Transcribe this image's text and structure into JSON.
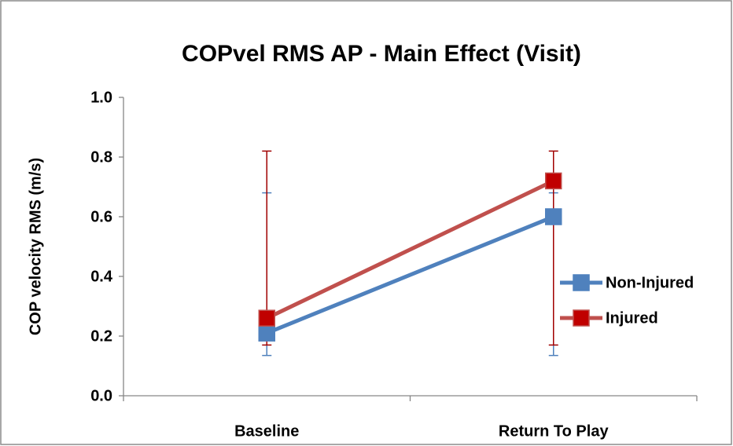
{
  "chart_data": {
    "type": "line",
    "title": "COPvel RMS AP - Main Effect (Visit)",
    "y_label": "COP velocity RMS (m/s)",
    "categories": [
      "Baseline",
      "Return To Play"
    ],
    "series": [
      {
        "name": "Non-Injured",
        "color": "#4f81bd",
        "marker_color": "#4f81bd",
        "values": [
          0.21,
          0.6
        ],
        "error_low": [
          0.135,
          0.135
        ],
        "error_high": [
          0.68,
          0.68
        ]
      },
      {
        "name": "Injured",
        "color": "#c0504d",
        "marker_color": "#c00000",
        "values": [
          0.26,
          0.72
        ],
        "error_low": [
          0.17,
          0.17
        ],
        "error_high": [
          0.82,
          0.82
        ]
      }
    ],
    "ylim": [
      0,
      1
    ],
    "yticks": [
      {
        "value": 0,
        "label": "0.0"
      },
      0.2,
      0.4,
      0.6,
      0.8,
      {
        "value": 1,
        "label": "1.0"
      }
    ],
    "grid": false,
    "legend": "right"
  }
}
